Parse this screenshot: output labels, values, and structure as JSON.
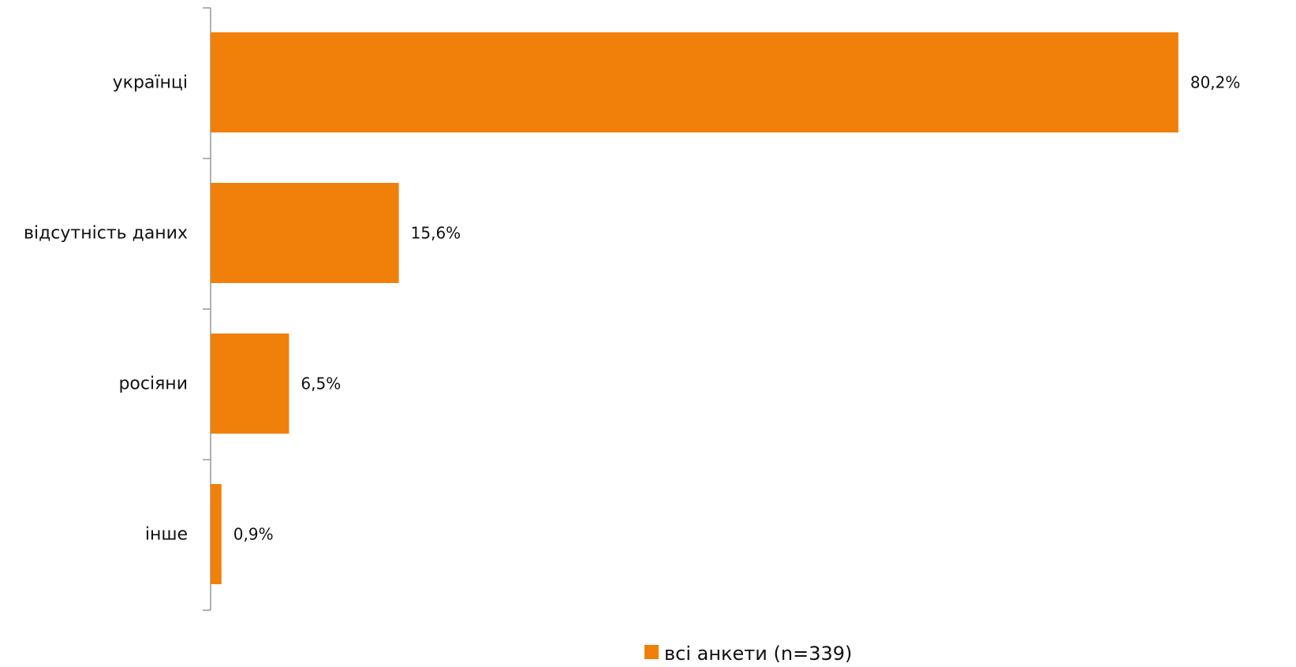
{
  "chart_data": {
    "type": "bar",
    "orientation": "horizontal",
    "categories": [
      "українці",
      "відсутність даних",
      "росіяни",
      "інше"
    ],
    "values": [
      80.2,
      15.6,
      6.5,
      0.9
    ],
    "value_labels": [
      "80,2%",
      "15,6%",
      "6,5%",
      "0,9%"
    ],
    "xlim": [
      0,
      84
    ],
    "grid": false,
    "series": [
      {
        "name": "всі анкети (n=339)",
        "values": [
          80.2,
          15.6,
          6.5,
          0.9
        ]
      }
    ],
    "legend": {
      "position": "bottom",
      "label": "всі анкети (n=339)"
    },
    "colors": {
      "bar": "#f0800a",
      "axis": "#999999",
      "text": "#111111"
    }
  }
}
